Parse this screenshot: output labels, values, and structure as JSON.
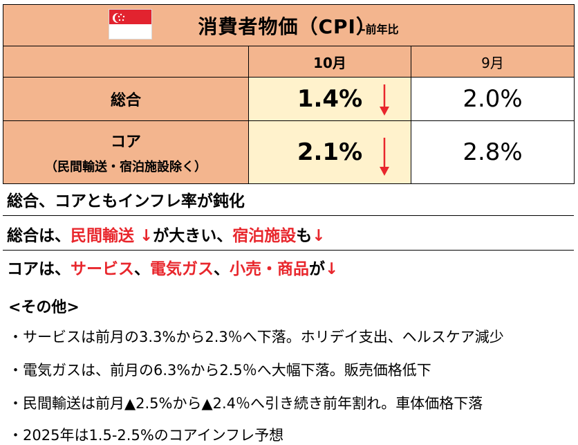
{
  "flag": {
    "name": "singapore-flag-icon",
    "colors": [
      "#e2232f",
      "#ffffff"
    ]
  },
  "header": {
    "title": "消費者物価（CPI）",
    "subtitle": "-前年比"
  },
  "columns": {
    "oct": "10月",
    "sep": "9月"
  },
  "rows": [
    {
      "label": "総合",
      "sublabel": "",
      "oct": "1.4%",
      "sep": "2.0%",
      "oct_trend": "down"
    },
    {
      "label": "コア",
      "sublabel": "（民間輸送・宿泊施設除く）",
      "oct": "2.1%",
      "sep": "2.8%",
      "oct_trend": "down"
    }
  ],
  "summary": {
    "line1": "総合、コアともインフレ率が鈍化",
    "line2": {
      "a": "総合は、",
      "b": "民間輸送 ↓",
      "c": "が大きい、",
      "d": "宿泊施設",
      "e": "も",
      "f": "↓"
    },
    "line3": {
      "a": "コアは、",
      "b": "サービス",
      "c": "、",
      "d": "電気ガス",
      "e": "、",
      "f": "小売・商品",
      "g": "が",
      "h": "↓"
    }
  },
  "other": {
    "heading": "<その他>",
    "items": [
      "・サービスは前月の3.3%から2.3％へ下落。ホリデイ支出、ヘルスケア減少",
      "・電気ガスは、前月の6.3%から2.5％へ大幅下落。販売価格低下",
      "・民間輸送は前月▲2.5%から▲2.4％へ引き続き前年割れ。車体価格下落",
      "・2025年は1.5-2.5%のコアインフレ予想"
    ]
  },
  "colors": {
    "header_bg": "#f3b58e",
    "highlight_bg": "#fff2cc",
    "accent_red": "#e8262c"
  }
}
